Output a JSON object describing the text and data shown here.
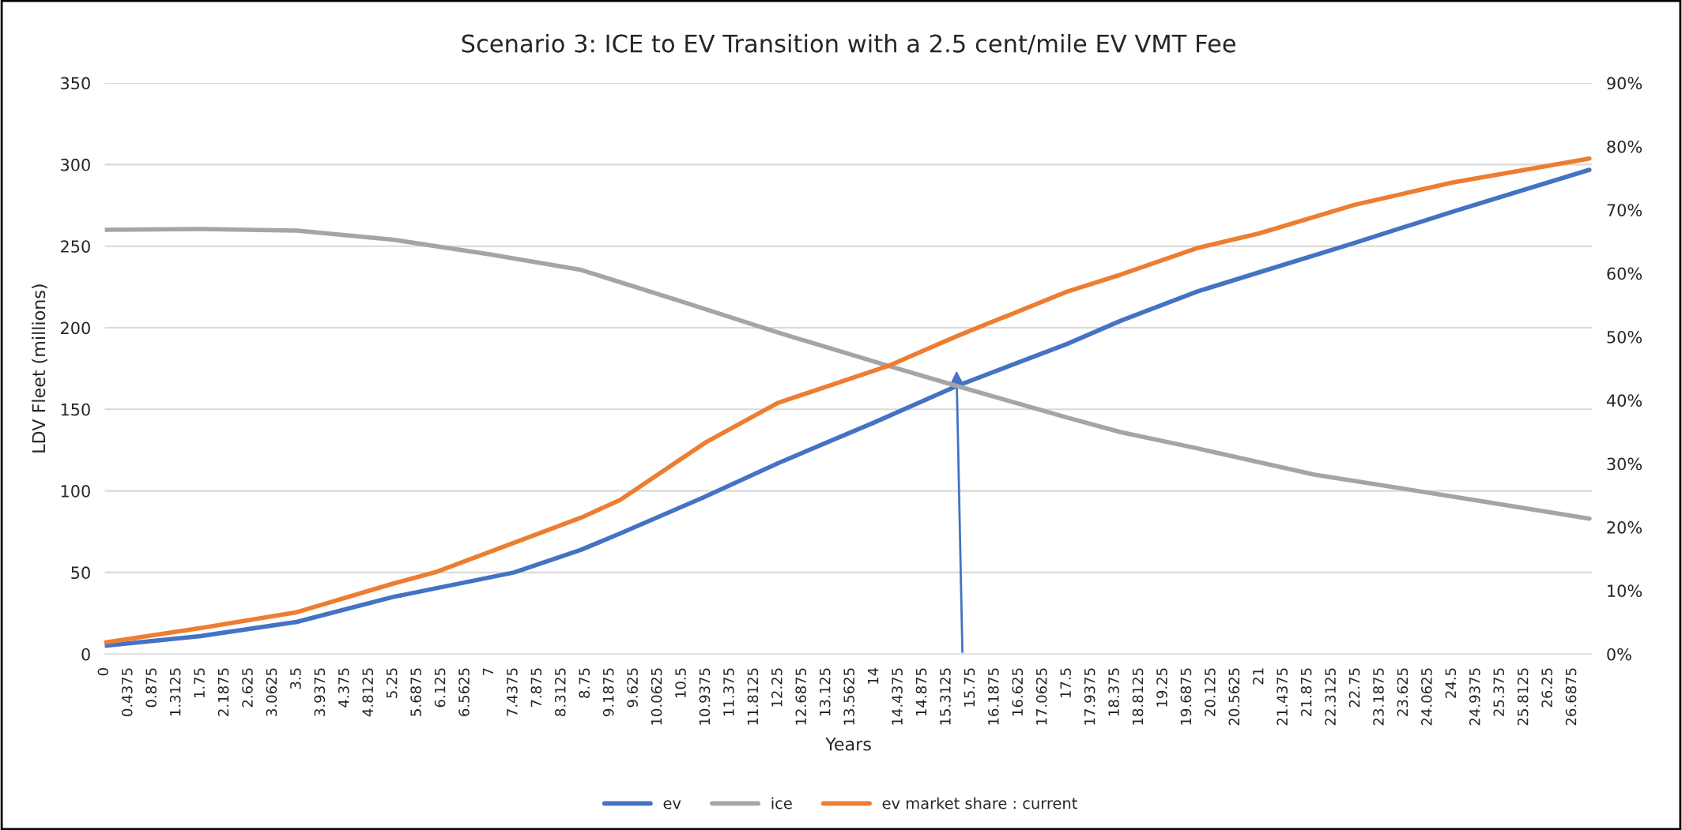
{
  "chart_data": {
    "type": "line",
    "title": "Scenario 3: ICE to EV Transition with a 2.5 cent/mile EV VMT Fee",
    "xlabel": "Years",
    "ylabel": "LDV Fleet (millions)",
    "xlim": [
      0,
      27.0625
    ],
    "ylim": [
      0,
      350
    ],
    "yticks": [
      0,
      50,
      100,
      150,
      200,
      250,
      300,
      350
    ],
    "y2lim": [
      0,
      90
    ],
    "y2ticks": [
      {
        "value": 0,
        "label": "0%"
      },
      {
        "value": 10,
        "label": "10%"
      },
      {
        "value": 20,
        "label": "20%"
      },
      {
        "value": 30,
        "label": "30%"
      },
      {
        "value": 40,
        "label": "40%"
      },
      {
        "value": 50,
        "label": "50%"
      },
      {
        "value": 60,
        "label": "60%"
      },
      {
        "value": 70,
        "label": "70%"
      },
      {
        "value": 80,
        "label": "80%"
      },
      {
        "value": 90,
        "label": "90%"
      }
    ],
    "xticks": [
      0,
      0.4375,
      0.875,
      1.3125,
      1.75,
      2.1875,
      2.625,
      3.0625,
      3.5,
      3.9375,
      4.375,
      4.8125,
      5.25,
      5.6875,
      6.125,
      6.5625,
      7,
      7.4375,
      7.875,
      8.3125,
      8.75,
      9.1875,
      9.625,
      10.0625,
      10.5,
      10.9375,
      11.375,
      11.8125,
      12.25,
      12.6875,
      13.125,
      13.5625,
      14,
      14.4375,
      14.875,
      15.3125,
      15.75,
      16.1875,
      16.625,
      17.0625,
      17.5,
      17.9375,
      18.375,
      18.8125,
      19.25,
      19.6875,
      20.125,
      20.5625,
      21,
      21.4375,
      21.875,
      22.3125,
      22.75,
      23.1875,
      23.625,
      24.0625,
      24.5,
      24.9375,
      25.375,
      25.8125,
      26.25,
      26.6875
    ],
    "grid": "y",
    "legend": "bottom",
    "marker": "none",
    "line_style": "solid",
    "series": [
      {
        "name": "ev",
        "color": "#4472c4",
        "x": [
          0,
          1.75,
          3.5,
          5.25,
          7.45,
          8.67,
          9.37,
          10.88,
          12.25,
          14,
          15.5,
          17.5,
          18.48,
          19.88,
          21,
          22.73,
          24.5,
          27
        ],
        "values": [
          5,
          11,
          19.7,
          35,
          50,
          63.9,
          73.8,
          95.8,
          117,
          142,
          164.3,
          190,
          204.3,
          222.3,
          234,
          252,
          271,
          296.8
        ]
      },
      {
        "name": "ice",
        "color": "#a5a5a5",
        "x": [
          0,
          1.75,
          3.5,
          5.25,
          7,
          8.67,
          10.5,
          12.25,
          14.25,
          15.5,
          17.5,
          18.48,
          19.88,
          22,
          24.8,
          27
        ],
        "values": [
          260,
          260.5,
          259.5,
          254,
          245,
          235.4,
          216,
          197,
          176.7,
          164.3,
          145,
          136,
          126,
          110,
          95,
          83
        ]
      },
      {
        "name": "ev market share : current",
        "color": "#ed7d31",
        "axis": "y2",
        "x": [
          0,
          1.75,
          3.5,
          5.25,
          6.02,
          8.67,
          9.38,
          10.94,
          12.25,
          14.25,
          15.5,
          17.5,
          18.48,
          19.88,
          21,
          22.73,
          24.5,
          27
        ],
        "values": [
          1.8,
          4.1,
          6.6,
          11.1,
          12.9,
          21.5,
          24.3,
          33.4,
          39.6,
          45.4,
          50.1,
          57.1,
          59.8,
          64.0,
          66.3,
          70.8,
          74.3,
          78.1
        ]
      }
    ]
  }
}
